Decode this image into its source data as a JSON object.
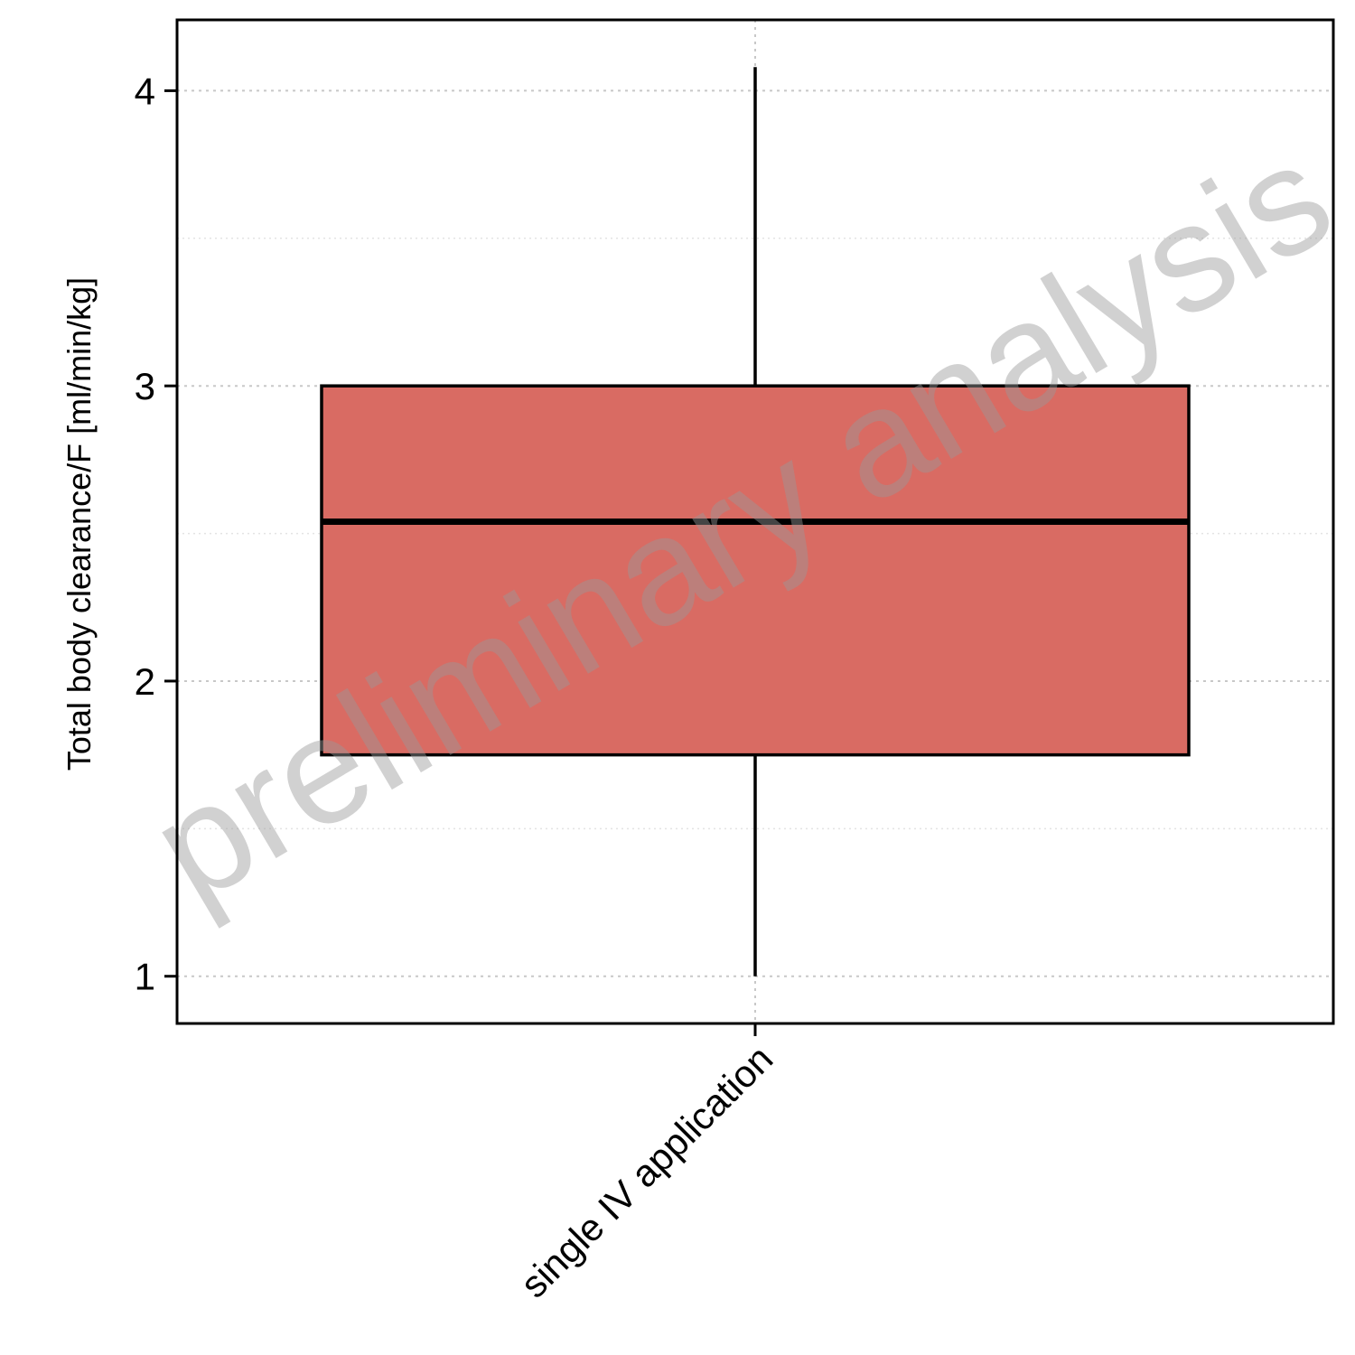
{
  "chart_data": {
    "type": "box",
    "title": "",
    "xlabel": "",
    "ylabel": "Total body clearance/F [ml/min/kg]",
    "categories": [
      "single IV application"
    ],
    "boxes": [
      {
        "category": "single IV application",
        "whisker_low": 1.0,
        "q1": 1.75,
        "median": 2.54,
        "q3": 3.0,
        "whisker_high": 4.08,
        "fill": "#d96b63"
      }
    ],
    "ylim": [
      0.84,
      4.24
    ],
    "yticks": [
      1,
      2,
      3,
      4
    ],
    "ytick_labels": [
      "1",
      "2",
      "3",
      "4"
    ],
    "minor_yticks": [
      1.5,
      2.5,
      3.5
    ],
    "grid": true,
    "watermark": "preliminary analysis"
  }
}
